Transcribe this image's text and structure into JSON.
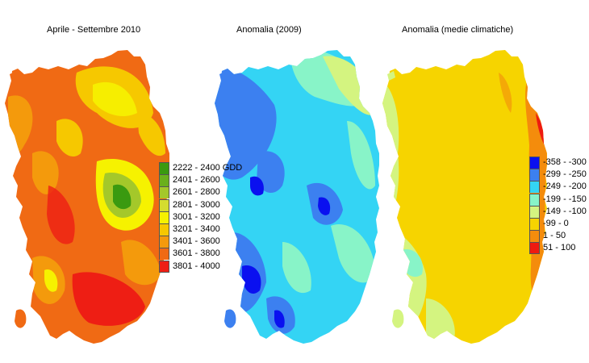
{
  "panels": [
    {
      "title": "Aprile - Settembre 2010",
      "legend": [
        {
          "label": "2222 - 2400 GDD",
          "color": "#3a9a10"
        },
        {
          "label": "2401 - 2600",
          "color": "#6ab01c"
        },
        {
          "label": "2601 - 2800",
          "color": "#a4c82a"
        },
        {
          "label": "2801 - 3000",
          "color": "#d4dc30"
        },
        {
          "label": "3001 - 3200",
          "color": "#f6f200"
        },
        {
          "label": "3201 - 3400",
          "color": "#f6c800"
        },
        {
          "label": "3401 - 3600",
          "color": "#f49a0c"
        },
        {
          "label": "3601 - 3800",
          "color": "#f06a14"
        },
        {
          "label": "3801 - 4000",
          "color": "#ee1e14"
        }
      ]
    },
    {
      "title": "Anomalia (2009)"
    },
    {
      "title": "Anomalia (medie climatiche)",
      "legend": [
        {
          "label": "-358 - -300",
          "color": "#0a10f0"
        },
        {
          "label": "-299 - -250",
          "color": "#3c80f0"
        },
        {
          "label": "-249 - -200",
          "color": "#34d4f4"
        },
        {
          "label": "-199 - -150",
          "color": "#88f4c8"
        },
        {
          "label": "-149 - -100",
          "color": "#d4f480"
        },
        {
          "label": "-99 - 0",
          "color": "#f6d400"
        },
        {
          "label": "1 - 50",
          "color": "#f48c0c"
        },
        {
          "label": "51 - 100",
          "color": "#ee1a10"
        }
      ]
    }
  ]
}
